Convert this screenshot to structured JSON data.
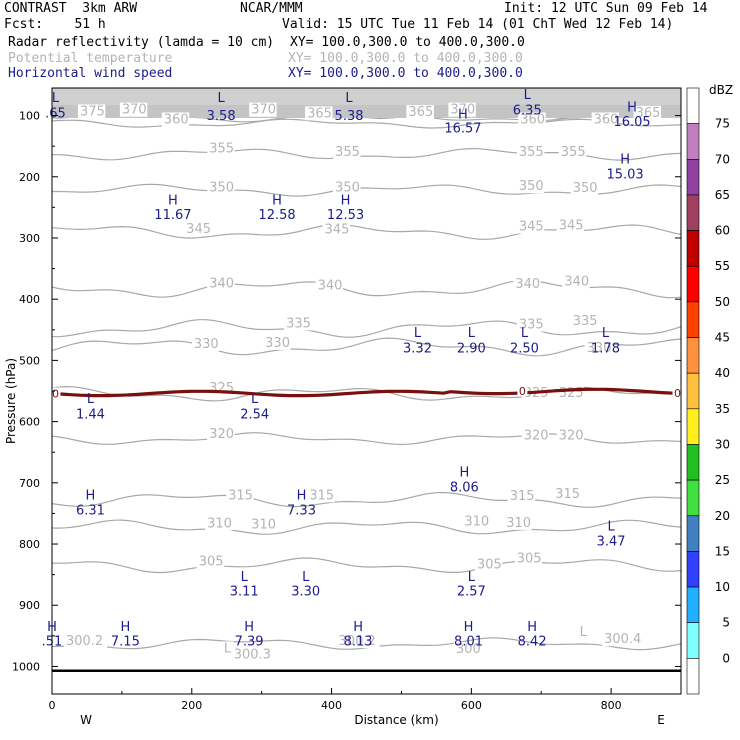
{
  "header": {
    "model": "CONTRAST  3km ARW",
    "org": "NCAR/MMM",
    "init": "Init: 12 UTC Sun 09 Feb 14",
    "fcst": "Fcst:    51 h",
    "valid": "Valid: 15 UTC Tue 11 Feb 14 (01 ChT Wed 12 Feb 14)",
    "field1": "Radar reflectivity (lamda = 10 cm)",
    "field1_xy": "XY= 100.0,300.0 to 400.0,300.0",
    "field2": "Potential temperature",
    "field2_xy": "XY= 100.0,300.0 to 400.0,300.0",
    "field3": "Horizontal wind speed",
    "field3_xy": "XY= 100.0,300.0 to 400.0,300.0"
  },
  "chart_data": {
    "type": "cross-section",
    "xlabel": "Distance (km)",
    "ylabel": "Pressure (hPa)",
    "xlim": [
      0,
      900
    ],
    "ylim_hpa": [
      1045,
      55
    ],
    "x_ticks": [
      0,
      200,
      400,
      600,
      800
    ],
    "y_ticks": [
      100,
      200,
      300,
      400,
      500,
      600,
      700,
      800,
      900,
      1000
    ],
    "endpoints": {
      "left": "W",
      "right": "E"
    },
    "colorbar": {
      "unit": "dBZ",
      "levels": [
        "75",
        "70",
        "65",
        "60",
        "55",
        "50",
        "45",
        "40",
        "35",
        "30",
        "25",
        "20",
        "15",
        "10",
        "5",
        "0"
      ],
      "colors": [
        "#ffffff",
        "#c080c0",
        "#9040a0",
        "#a04060",
        "#c00000",
        "#ff0000",
        "#ff4000",
        "#ff9040",
        "#ffc040",
        "#ffee20",
        "#20c020",
        "#40e040",
        "#4080c0",
        "#3040ff",
        "#20b0ff",
        "#80ffff",
        "#ffffff"
      ]
    },
    "theta_contours": [
      {
        "label": "375",
        "y_hpa": 95,
        "wave": 4
      },
      {
        "label": "370",
        "y_hpa": 97,
        "wave": 3
      },
      {
        "label": "365",
        "y_hpa": 103,
        "wave": 3
      },
      {
        "label": "360",
        "y_hpa": 113,
        "wave": 3
      },
      {
        "label": "355",
        "y_hpa": 163,
        "wave": 4
      },
      {
        "label": "350",
        "y_hpa": 222,
        "wave": 4
      },
      {
        "label": "345",
        "y_hpa": 290,
        "wave": 5
      },
      {
        "label": "340",
        "y_hpa": 383,
        "wave": 6
      },
      {
        "label": "335",
        "y_hpa": 448,
        "wave": 6
      },
      {
        "label": "330",
        "y_hpa": 478,
        "wave": 6
      },
      {
        "label": "325",
        "y_hpa": 555,
        "wave": 5
      },
      {
        "label": "320",
        "y_hpa": 628,
        "wave": 4
      },
      {
        "label": "315",
        "y_hpa": 728,
        "wave": 5
      },
      {
        "label": "310",
        "y_hpa": 773,
        "wave": 5
      },
      {
        "label": "305",
        "y_hpa": 835,
        "wave": 5
      },
      {
        "label": "300",
        "y_hpa": 963,
        "wave": 4
      }
    ],
    "theta_labels": [
      {
        "text": "375",
        "x": 40,
        "p": 100
      },
      {
        "text": "370",
        "x": 100,
        "p": 97
      },
      {
        "text": "360",
        "x": 160,
        "p": 113
      },
      {
        "text": "370",
        "x": 285,
        "p": 97
      },
      {
        "text": "365",
        "x": 365,
        "p": 103
      },
      {
        "text": "365",
        "x": 510,
        "p": 101
      },
      {
        "text": "370",
        "x": 570,
        "p": 97
      },
      {
        "text": "360",
        "x": 670,
        "p": 113
      },
      {
        "text": "360",
        "x": 775,
        "p": 113
      },
      {
        "text": "365",
        "x": 835,
        "p": 102
      },
      {
        "text": "355",
        "x": 225,
        "p": 160
      },
      {
        "text": "355",
        "x": 405,
        "p": 166
      },
      {
        "text": "355",
        "x": 668,
        "p": 166
      },
      {
        "text": "355",
        "x": 728,
        "p": 166
      },
      {
        "text": "350",
        "x": 225,
        "p": 224
      },
      {
        "text": "350",
        "x": 405,
        "p": 224
      },
      {
        "text": "350",
        "x": 668,
        "p": 222
      },
      {
        "text": "350",
        "x": 745,
        "p": 225
      },
      {
        "text": "345",
        "x": 192,
        "p": 292
      },
      {
        "text": "345",
        "x": 390,
        "p": 293
      },
      {
        "text": "345",
        "x": 668,
        "p": 288
      },
      {
        "text": "345",
        "x": 725,
        "p": 286
      },
      {
        "text": "340",
        "x": 225,
        "p": 381
      },
      {
        "text": "340",
        "x": 380,
        "p": 384
      },
      {
        "text": "340",
        "x": 663,
        "p": 382
      },
      {
        "text": "340",
        "x": 733,
        "p": 378
      },
      {
        "text": "335",
        "x": 335,
        "p": 446
      },
      {
        "text": "335",
        "x": 668,
        "p": 448
      },
      {
        "text": "335",
        "x": 745,
        "p": 442
      },
      {
        "text": "330",
        "x": 203,
        "p": 480
      },
      {
        "text": "330",
        "x": 305,
        "p": 478
      },
      {
        "text": "330",
        "x": 765,
        "p": 486
      },
      {
        "text": "325",
        "x": 225,
        "p": 552
      },
      {
        "text": "325",
        "x": 675,
        "p": 560
      },
      {
        "text": "325",
        "x": 725,
        "p": 560
      },
      {
        "text": "320",
        "x": 225,
        "p": 627
      },
      {
        "text": "320",
        "x": 675,
        "p": 629
      },
      {
        "text": "320",
        "x": 725,
        "p": 629
      },
      {
        "text": "315",
        "x": 252,
        "p": 727
      },
      {
        "text": "315",
        "x": 368,
        "p": 727
      },
      {
        "text": "315",
        "x": 655,
        "p": 728
      },
      {
        "text": "315",
        "x": 720,
        "p": 725
      },
      {
        "text": "310",
        "x": 222,
        "p": 773
      },
      {
        "text": "310",
        "x": 285,
        "p": 775
      },
      {
        "text": "310",
        "x": 590,
        "p": 770
      },
      {
        "text": "310",
        "x": 650,
        "p": 772
      },
      {
        "text": "305",
        "x": 210,
        "p": 835
      },
      {
        "text": "305",
        "x": 608,
        "p": 840
      },
      {
        "text": "305",
        "x": 665,
        "p": 830
      },
      {
        "text": "300.2",
        "x": 20,
        "p": 965
      },
      {
        "text": "300.3",
        "x": 260,
        "p": 987
      },
      {
        "text": "300.2",
        "x": 410,
        "p": 965
      },
      {
        "text": "300",
        "x": 578,
        "p": 978
      },
      {
        "text": "300.4",
        "x": 790,
        "p": 962
      },
      {
        "text": "L",
        "x": 246,
        "p": 977
      },
      {
        "text": "L",
        "x": 755,
        "p": 950
      }
    ],
    "wind_extrema": [
      {
        "type": "L",
        "value": ".65",
        "x": 5,
        "p": 78,
        "vp": 103
      },
      {
        "type": "L",
        "value": "3.58",
        "x": 242,
        "p": 78,
        "vp": 107
      },
      {
        "type": "L",
        "value": "5.38",
        "x": 425,
        "p": 78,
        "vp": 107
      },
      {
        "type": "H",
        "value": "16.57",
        "x": 588,
        "p": 105,
        "vp": 128
      },
      {
        "type": "L",
        "value": "6.35",
        "x": 680,
        "p": 73,
        "vp": 98
      },
      {
        "type": "H",
        "value": "16.05",
        "x": 830,
        "p": 93,
        "vp": 117
      },
      {
        "type": "H",
        "value": "15.03",
        "x": 820,
        "p": 178,
        "vp": 203
      },
      {
        "type": "H",
        "value": "11.67",
        "x": 173,
        "p": 245,
        "vp": 269
      },
      {
        "type": "H",
        "value": "12.58",
        "x": 322,
        "p": 245,
        "vp": 269
      },
      {
        "type": "H",
        "value": "12.53",
        "x": 420,
        "p": 245,
        "vp": 269
      },
      {
        "type": "L",
        "value": "3.32",
        "x": 523,
        "p": 462,
        "vp": 487
      },
      {
        "type": "L",
        "value": "2.90",
        "x": 600,
        "p": 462,
        "vp": 487
      },
      {
        "type": "L",
        "value": "2.50",
        "x": 676,
        "p": 462,
        "vp": 487
      },
      {
        "type": "L",
        "value": "1.78",
        "x": 792,
        "p": 462,
        "vp": 487
      },
      {
        "type": "L",
        "value": "1.44",
        "x": 55,
        "p": 570,
        "vp": 595
      },
      {
        "type": "L",
        "value": "2.54",
        "x": 290,
        "p": 570,
        "vp": 595
      },
      {
        "type": "H",
        "value": "8.06",
        "x": 590,
        "p": 690,
        "vp": 714
      },
      {
        "type": "H",
        "value": "6.31",
        "x": 55,
        "p": 727,
        "vp": 752
      },
      {
        "type": "H",
        "value": "7.33",
        "x": 357,
        "p": 727,
        "vp": 752
      },
      {
        "type": "L",
        "value": "3.47",
        "x": 800,
        "p": 778,
        "vp": 802
      },
      {
        "type": "L",
        "value": "3.11",
        "x": 275,
        "p": 860,
        "vp": 884
      },
      {
        "type": "L",
        "value": "3.30",
        "x": 363,
        "p": 860,
        "vp": 884
      },
      {
        "type": "L",
        "value": "2.57",
        "x": 600,
        "p": 860,
        "vp": 884
      },
      {
        "type": "H",
        "value": ".51",
        "x": 0,
        "p": 942,
        "vp": 966
      },
      {
        "type": "H",
        "value": "7.15",
        "x": 105,
        "p": 942,
        "vp": 966
      },
      {
        "type": "H",
        "value": "7.39",
        "x": 282,
        "p": 942,
        "vp": 966
      },
      {
        "type": "H",
        "value": "8.13",
        "x": 438,
        "p": 942,
        "vp": 966
      },
      {
        "type": "H",
        "value": "8.01",
        "x": 596,
        "p": 942,
        "vp": 966
      },
      {
        "type": "H",
        "value": "8.42",
        "x": 687,
        "p": 942,
        "vp": 966
      }
    ],
    "reflectivity_contour": {
      "level": "0",
      "y_hpa": 554,
      "color": "#7a0f0f"
    }
  }
}
